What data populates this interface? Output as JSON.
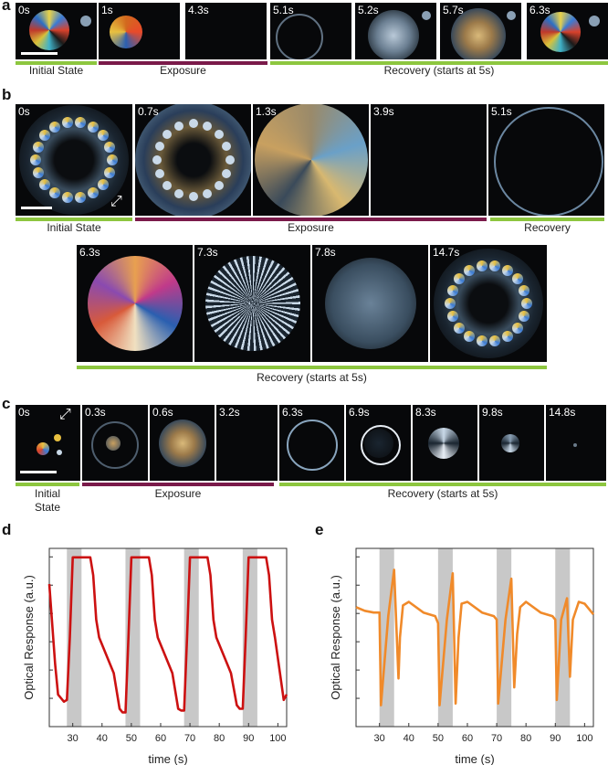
{
  "panels": {
    "a": {
      "letter": "a",
      "frames": [
        "0s",
        "1s",
        "4.3s",
        "5.1s",
        "5.2s",
        "5.7s",
        "6.3s"
      ],
      "bars": [
        {
          "label": "Initial State",
          "phase": "initial"
        },
        {
          "label": "Exposure",
          "phase": "exposure"
        },
        {
          "label": "Recovery (starts at 5s)",
          "phase": "recovery"
        }
      ]
    },
    "b": {
      "letter": "b",
      "frames_top": [
        "0s",
        "0.7s",
        "1.3s",
        "3.9s",
        "5.1s"
      ],
      "frames_bottom": [
        "6.3s",
        "7.3s",
        "7.8s",
        "14.7s"
      ],
      "bars_top": [
        {
          "label": "Initial State",
          "phase": "initial"
        },
        {
          "label": "Exposure",
          "phase": "exposure"
        },
        {
          "label": "Recovery",
          "phase": "recovery"
        }
      ],
      "bar_bottom": {
        "label": "Recovery (starts at 5s)",
        "phase": "recovery"
      }
    },
    "c": {
      "letter": "c",
      "frames": [
        "0s",
        "0.3s",
        "0.6s",
        "3.2s",
        "6.3s",
        "6.9s",
        "8.3s",
        "9.8s",
        "14.8s"
      ],
      "bars": [
        {
          "label": "Initial\nState",
          "phase": "initial"
        },
        {
          "label": "Exposure",
          "phase": "exposure"
        },
        {
          "label": "Recovery (starts at 5s)",
          "phase": "recovery"
        }
      ]
    },
    "d": {
      "letter": "d"
    },
    "e": {
      "letter": "e"
    }
  },
  "colors": {
    "initial": "#8dc63f",
    "exposure": "#7a1a4a",
    "recovery": "#8dc63f",
    "trace_d": "#cc1111",
    "trace_e": "#f08a2a",
    "shade": "#c8c8c8"
  },
  "chart_data": [
    {
      "type": "line",
      "panel": "d",
      "xlabel": "time (s)",
      "ylabel": "Optical Response (a.u.)",
      "xlim": [
        22,
        103
      ],
      "xticks": [
        30,
        40,
        50,
        60,
        70,
        80,
        90,
        100
      ],
      "ylim": [
        0,
        1
      ],
      "shaded_intervals": [
        [
          28,
          33
        ],
        [
          48,
          53
        ],
        [
          68,
          73
        ],
        [
          88,
          93
        ]
      ],
      "series": [
        {
          "color": "#cc1111",
          "x": [
            22,
            24,
            25,
            26,
            27,
            28,
            29,
            30,
            31,
            33,
            34,
            36,
            37,
            38,
            39,
            44,
            46,
            47,
            48,
            49,
            50,
            51,
            53,
            54,
            56,
            57,
            58,
            59,
            64,
            66,
            67,
            68,
            69,
            70,
            71,
            73,
            74,
            76,
            77,
            78,
            79,
            84,
            86,
            87,
            88,
            89,
            90,
            91,
            93,
            94,
            96,
            97,
            98,
            99,
            102,
            103
          ],
          "y": [
            0.8,
            0.35,
            0.18,
            0.16,
            0.14,
            0.15,
            0.5,
            0.95,
            0.95,
            0.95,
            0.95,
            0.95,
            0.85,
            0.6,
            0.5,
            0.3,
            0.1,
            0.08,
            0.08,
            0.5,
            0.95,
            0.95,
            0.95,
            0.95,
            0.95,
            0.85,
            0.6,
            0.5,
            0.3,
            0.1,
            0.09,
            0.09,
            0.5,
            0.95,
            0.95,
            0.95,
            0.95,
            0.95,
            0.85,
            0.6,
            0.5,
            0.3,
            0.12,
            0.1,
            0.1,
            0.5,
            0.95,
            0.95,
            0.95,
            0.95,
            0.95,
            0.85,
            0.6,
            0.5,
            0.15,
            0.18
          ]
        }
      ]
    },
    {
      "type": "line",
      "panel": "e",
      "xlabel": "time (s)",
      "ylabel": "Optical Response (a.u.)",
      "xlim": [
        22,
        103
      ],
      "xticks": [
        30,
        40,
        50,
        60,
        70,
        80,
        90,
        100
      ],
      "ylim": [
        0,
        1
      ],
      "shaded_intervals": [
        [
          30,
          35
        ],
        [
          50,
          55
        ],
        [
          70,
          75
        ],
        [
          90,
          95
        ]
      ],
      "series": [
        {
          "color": "#f08a2a",
          "x": [
            22,
            25,
            28,
            30,
            30.5,
            33,
            35,
            36.5,
            37,
            38,
            40,
            45,
            49,
            50,
            50.5,
            53,
            55,
            56,
            57,
            58,
            60,
            65,
            69,
            70,
            70.5,
            73,
            75,
            76,
            77,
            78,
            80,
            85,
            89,
            90,
            90.5,
            92,
            94,
            95,
            96,
            98,
            100,
            103
          ],
          "y": [
            0.67,
            0.65,
            0.64,
            0.64,
            0.12,
            0.62,
            0.88,
            0.27,
            0.5,
            0.68,
            0.7,
            0.64,
            0.62,
            0.58,
            0.12,
            0.6,
            0.86,
            0.13,
            0.5,
            0.69,
            0.7,
            0.64,
            0.62,
            0.6,
            0.13,
            0.6,
            0.83,
            0.22,
            0.52,
            0.67,
            0.7,
            0.64,
            0.62,
            0.6,
            0.15,
            0.6,
            0.72,
            0.28,
            0.6,
            0.7,
            0.69,
            0.63
          ]
        }
      ]
    }
  ]
}
